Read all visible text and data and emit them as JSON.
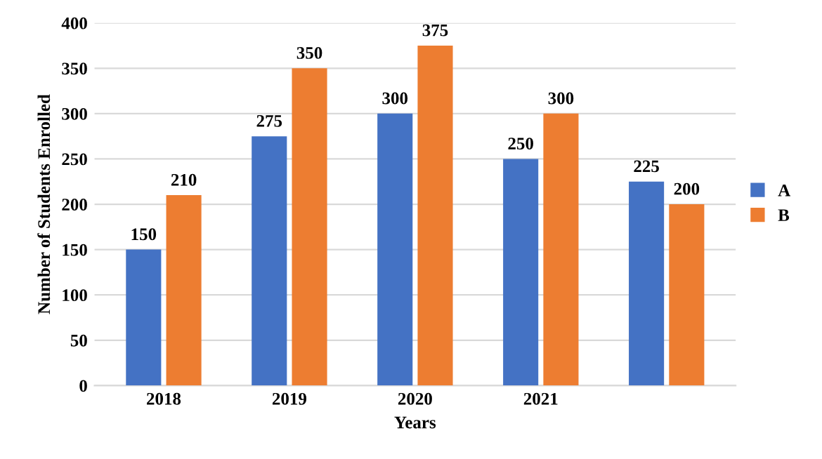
{
  "chart_data": {
    "type": "bar",
    "xlabel": "Years",
    "ylabel": "Number of Students Enrolled",
    "categories": [
      "2018",
      "2019",
      "2020",
      "2021",
      null
    ],
    "series": [
      {
        "name": "A",
        "color": "#4472c4",
        "values": [
          150,
          275,
          300,
          250,
          225
        ]
      },
      {
        "name": "B",
        "color": "#ed7d31",
        "values": [
          210,
          350,
          375,
          300,
          200
        ]
      }
    ],
    "ylim": [
      0,
      400
    ],
    "yticks": [
      0,
      50,
      100,
      150,
      200,
      250,
      300,
      350,
      400
    ],
    "grid": "y",
    "legend": "right",
    "data_labels": true
  }
}
